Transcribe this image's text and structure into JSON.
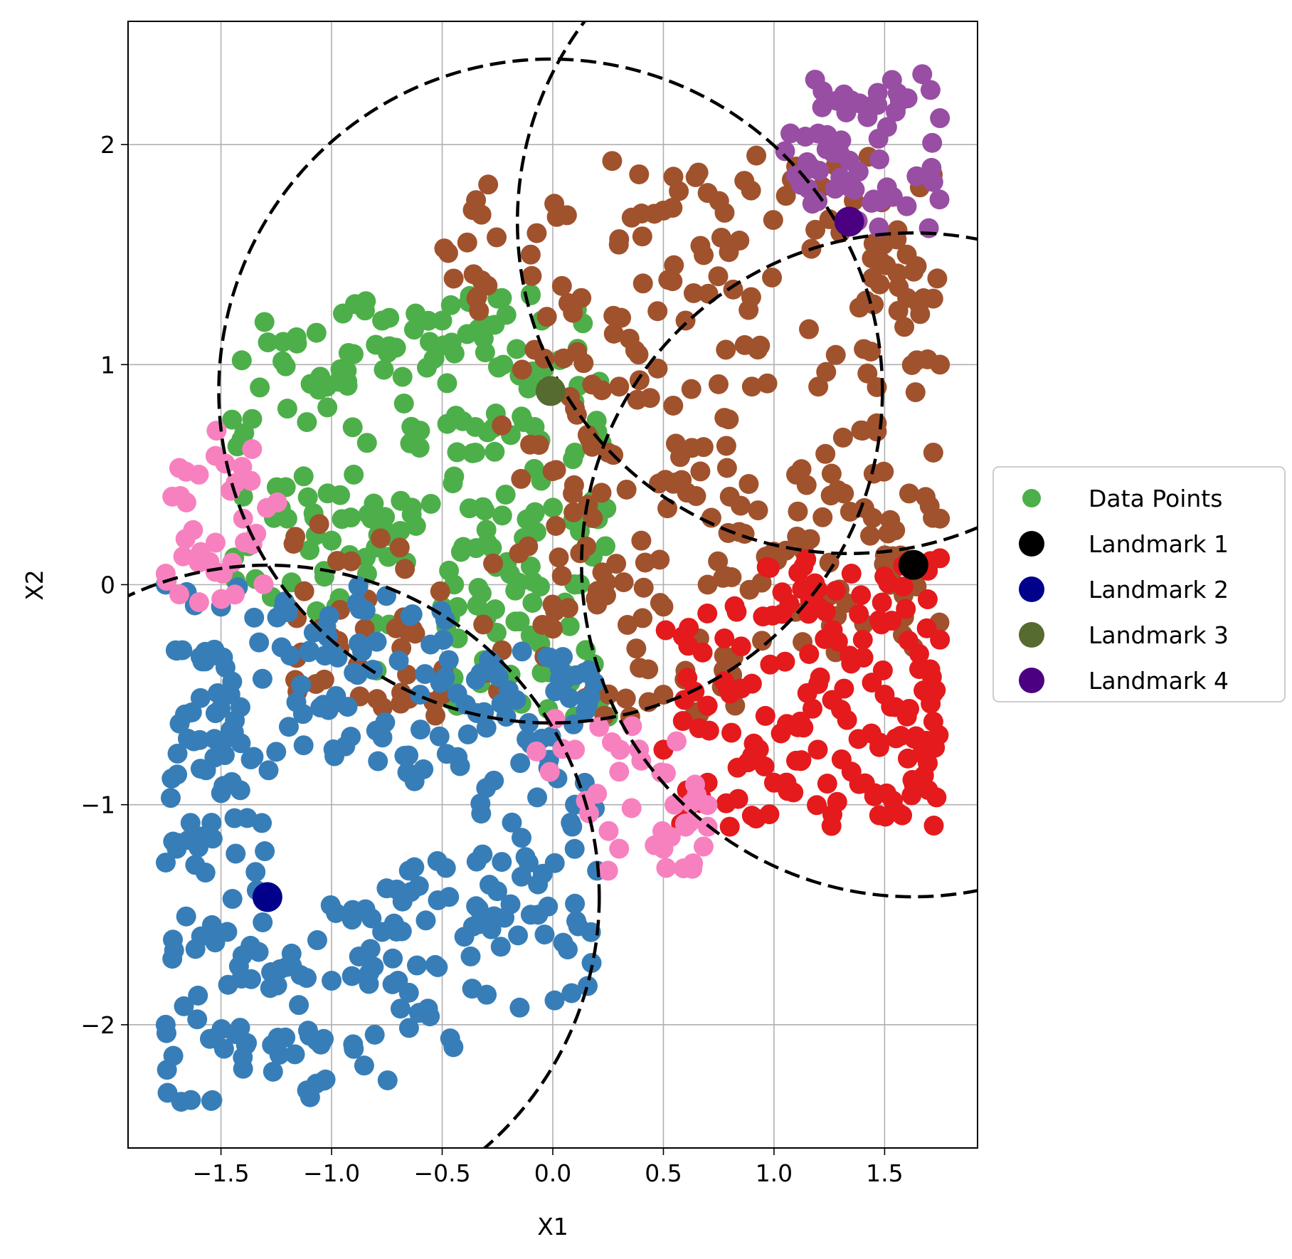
{
  "chart_data": {
    "type": "scatter",
    "title": "",
    "xlabel": "X1",
    "ylabel": "X2",
    "xlim": [
      -1.92,
      1.92
    ],
    "ylim": [
      -2.56,
      2.56
    ],
    "xticks": [
      -1.5,
      -1.0,
      -0.5,
      0.0,
      0.5,
      1.0,
      1.5
    ],
    "xtick_labels": [
      "−1.5",
      "−1.0",
      "−0.5",
      "0.0",
      "0.5",
      "1.0",
      "1.5"
    ],
    "yticks": [
      -2,
      -1,
      0,
      1,
      2
    ],
    "ytick_labels": [
      "−2",
      "−1",
      "0",
      "1",
      "2"
    ],
    "grid": true,
    "legend_position": "center-right-outside",
    "legend": [
      {
        "label": "Data Points",
        "color": "#4daf4a",
        "size": "small"
      },
      {
        "label": "Landmark 1",
        "color": "#000000",
        "size": "large"
      },
      {
        "label": "Landmark 2",
        "color": "#00008b",
        "size": "large"
      },
      {
        "label": "Landmark 3",
        "color": "#556b2f",
        "size": "large"
      },
      {
        "label": "Landmark 4",
        "color": "#4b0082",
        "size": "large"
      }
    ],
    "landmarks": [
      {
        "name": "Landmark 1",
        "x": 1.63,
        "y": 0.09,
        "color": "#000000"
      },
      {
        "name": "Landmark 2",
        "x": -1.29,
        "y": -1.42,
        "color": "#00008b"
      },
      {
        "name": "Landmark 3",
        "x": -0.01,
        "y": 0.88,
        "color": "#556b2f"
      },
      {
        "name": "Landmark 4",
        "x": 1.34,
        "y": 1.65,
        "color": "#4b0082"
      }
    ],
    "circles": [
      {
        "cx": 1.63,
        "cy": 0.09,
        "r": 1.5
      },
      {
        "cx": -1.29,
        "cy": -1.42,
        "r": 1.5
      },
      {
        "cx": -0.01,
        "cy": 0.88,
        "r": 1.5
      },
      {
        "cx": 1.34,
        "cy": 1.65,
        "r": 1.5
      }
    ],
    "clusters": [
      {
        "name": "green",
        "color": "#4daf4a",
        "count": 230,
        "points": [
          [
            -1.45,
            0.75
          ],
          [
            -1.2,
            0.8
          ],
          [
            -0.8,
            1.09
          ],
          [
            -0.5,
            1.2
          ],
          [
            -0.25,
            1.3
          ],
          [
            -0.1,
            1.32
          ],
          [
            -0.05,
            1.2
          ],
          [
            -0.15,
            0.95
          ],
          [
            0.1,
            0.6
          ],
          [
            0.15,
            0.3
          ],
          [
            0.1,
            0.0
          ],
          [
            0.05,
            -0.4
          ],
          [
            0.2,
            -0.5
          ],
          [
            0.1,
            -0.6
          ],
          [
            0.25,
            -0.6
          ],
          [
            -0.05,
            -0.4
          ],
          [
            -0.3,
            -0.15
          ],
          [
            -0.5,
            -0.1
          ],
          [
            -0.7,
            0.15
          ],
          [
            -1.0,
            0.2
          ],
          [
            -1.2,
            0.3
          ],
          [
            -1.4,
            0.4
          ],
          [
            -0.35,
            0.6
          ],
          [
            -0.6,
            0.7
          ],
          [
            -0.9,
            0.5
          ]
        ]
      },
      {
        "name": "brown",
        "color": "#a0522d",
        "count": 330,
        "points": [
          [
            -0.1,
            1.5
          ],
          [
            0.3,
            1.57
          ],
          [
            0.5,
            1.7
          ],
          [
            0.7,
            1.78
          ],
          [
            0.92,
            1.95
          ],
          [
            1.1,
            1.9
          ],
          [
            1.3,
            1.6
          ],
          [
            1.45,
            1.55
          ],
          [
            1.6,
            1.5
          ],
          [
            1.72,
            1.3
          ],
          [
            1.75,
            1.0
          ],
          [
            1.72,
            0.6
          ],
          [
            1.75,
            0.3
          ],
          [
            1.55,
            0.1
          ],
          [
            1.25,
            0.1
          ],
          [
            1.0,
            0.15
          ],
          [
            0.7,
            0.0
          ],
          [
            0.5,
            -0.1
          ],
          [
            0.5,
            -0.5
          ],
          [
            0.35,
            -0.6
          ],
          [
            0.0,
            -0.2
          ],
          [
            -0.3,
            -0.4
          ],
          [
            -0.5,
            -0.5
          ],
          [
            -0.85,
            -0.2
          ],
          [
            -1.2,
            -0.1
          ],
          [
            -1.05,
            -0.2
          ],
          [
            0.1,
            0.8
          ],
          [
            0.3,
            0.9
          ],
          [
            0.6,
            1.2
          ],
          [
            0.9,
            0.9
          ],
          [
            1.2,
            0.9
          ],
          [
            1.4,
            0.7
          ],
          [
            1.1,
            0.5
          ],
          [
            0.8,
            0.4
          ],
          [
            0.4,
            0.2
          ],
          [
            0.25,
            0.6
          ]
        ]
      },
      {
        "name": "blue",
        "color": "#377eb8",
        "count": 330,
        "points": [
          [
            -1.75,
            0.0
          ],
          [
            -1.5,
            -0.1
          ],
          [
            -1.35,
            -0.15
          ],
          [
            -1.1,
            -0.3
          ],
          [
            -0.9,
            -0.4
          ],
          [
            -0.6,
            -0.5
          ],
          [
            -0.3,
            -0.65
          ],
          [
            -0.05,
            -0.7
          ],
          [
            0.1,
            -1.0
          ],
          [
            0.2,
            -1.3
          ],
          [
            0.1,
            -1.45
          ],
          [
            -0.1,
            -1.5
          ],
          [
            -0.4,
            -1.6
          ],
          [
            -0.7,
            -1.8
          ],
          [
            -1.0,
            -1.8
          ],
          [
            -1.1,
            -2.05
          ],
          [
            -1.4,
            -2.2
          ],
          [
            -1.68,
            -2.35
          ],
          [
            -1.75,
            -2.0
          ],
          [
            -1.72,
            -1.7
          ],
          [
            -1.7,
            -1.2
          ],
          [
            -1.65,
            -0.7
          ],
          [
            -1.7,
            -0.3
          ]
        ]
      },
      {
        "name": "red",
        "color": "#e41a1c",
        "count": 150,
        "points": [
          [
            0.5,
            -0.75
          ],
          [
            0.7,
            -0.55
          ],
          [
            0.9,
            -0.45
          ],
          [
            1.05,
            -0.35
          ],
          [
            1.2,
            -0.1
          ],
          [
            1.35,
            0.05
          ],
          [
            1.6,
            0.1
          ],
          [
            1.75,
            0.12
          ],
          [
            1.75,
            -0.25
          ],
          [
            1.7,
            -0.5
          ],
          [
            1.65,
            -0.7
          ],
          [
            1.5,
            -0.5
          ],
          [
            1.35,
            -0.85
          ],
          [
            1.1,
            -0.8
          ],
          [
            1.0,
            -0.9
          ],
          [
            0.9,
            -1.05
          ],
          [
            0.7,
            -0.9
          ],
          [
            0.6,
            -1.0
          ],
          [
            0.8,
            -1.1
          ]
        ]
      },
      {
        "name": "pink",
        "color": "#f781bf",
        "count": 60,
        "points": [
          [
            -1.75,
            0.05
          ],
          [
            -1.72,
            0.4
          ],
          [
            -1.6,
            0.5
          ],
          [
            -1.52,
            0.7
          ],
          [
            -1.4,
            0.3
          ],
          [
            -1.45,
            0.1
          ],
          [
            -1.6,
            0.1
          ],
          [
            0.1,
            -0.75
          ],
          [
            0.3,
            -0.85
          ],
          [
            0.4,
            -0.8
          ],
          [
            0.55,
            -1.0
          ],
          [
            0.6,
            -1.1
          ],
          [
            0.7,
            -1.1
          ],
          [
            0.5,
            -1.2
          ],
          [
            0.3,
            -1.2
          ],
          [
            0.25,
            -1.3
          ],
          [
            0.2,
            -0.95
          ]
        ]
      },
      {
        "name": "purple",
        "color": "#984ea3",
        "count": 50,
        "points": [
          [
            1.05,
            1.97
          ],
          [
            1.2,
            2.05
          ],
          [
            1.35,
            2.2
          ],
          [
            1.45,
            2.18
          ],
          [
            1.55,
            2.15
          ],
          [
            1.67,
            2.32
          ],
          [
            1.75,
            2.12
          ],
          [
            1.72,
            1.83
          ],
          [
            1.7,
            1.62
          ],
          [
            1.6,
            1.72
          ],
          [
            1.45,
            1.75
          ],
          [
            1.3,
            1.85
          ],
          [
            1.15,
            1.92
          ]
        ]
      }
    ]
  }
}
